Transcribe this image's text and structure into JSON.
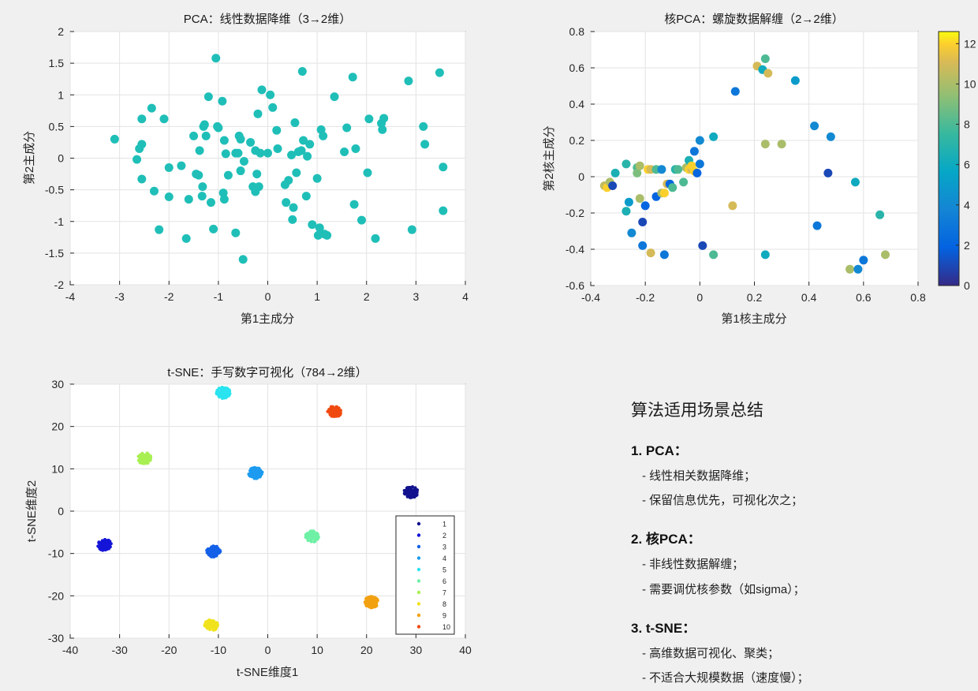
{
  "charts": [
    {
      "id": "pca",
      "title": "PCA：线性数据降维（3→2维）",
      "xlabel": "第1主成分",
      "ylabel": "第2主成分",
      "xticks": [
        "-4",
        "-3",
        "-2",
        "-1",
        "0",
        "1",
        "2",
        "3",
        "4"
      ],
      "yticks": [
        "-2",
        "-1.5",
        "-1",
        "-0.5",
        "0",
        "0.5",
        "1",
        "1.5",
        "2"
      ],
      "colors": {
        "point": "#1fbfb8"
      }
    },
    {
      "id": "kpca",
      "title": "核PCA：螺旋数据解缠（2→2维）",
      "xlabel": "第1核主成分",
      "ylabel": "第2核主成分",
      "xticks": [
        "-0.4",
        "-0.2",
        "0",
        "0.2",
        "0.4",
        "0.6",
        "0.8"
      ],
      "yticks": [
        "-0.6",
        "-0.4",
        "-0.2",
        "0",
        "0.2",
        "0.4",
        "0.6",
        "0.8"
      ],
      "colorbar_ticks": [
        "0",
        "2",
        "4",
        "6",
        "8",
        "10",
        "12"
      ]
    },
    {
      "id": "tsne",
      "title": "t-SNE：手写数字可视化（784→2维）",
      "xlabel": "t-SNE维度1",
      "ylabel": "t-SNE维度2",
      "xticks": [
        "-40",
        "-30",
        "-20",
        "-10",
        "0",
        "10",
        "20",
        "30",
        "40"
      ],
      "yticks": [
        "-30",
        "-20",
        "-10",
        "0",
        "10",
        "20",
        "30"
      ],
      "legend": [
        "1",
        "2",
        "3",
        "4",
        "5",
        "6",
        "7",
        "8",
        "9",
        "10"
      ]
    }
  ],
  "chart_data": [
    {
      "type": "scatter",
      "title": "PCA：线性数据降维（3→2维）",
      "xlabel": "第1主成分",
      "ylabel": "第2主成分",
      "xlim": [
        -4,
        4
      ],
      "ylim": [
        -2,
        2
      ],
      "grid": true,
      "color": "#1fbfb8",
      "points": [
        [
          -3.1,
          0.3
        ],
        [
          -2.65,
          -0.02
        ],
        [
          -2.6,
          0.15
        ],
        [
          -2.55,
          0.22
        ],
        [
          -2.55,
          0.62
        ],
        [
          -2.55,
          -0.33
        ],
        [
          -2.35,
          0.79
        ],
        [
          -2.3,
          -0.52
        ],
        [
          -2.2,
          -1.13
        ],
        [
          -2.1,
          0.62
        ],
        [
          -2.0,
          -0.15
        ],
        [
          -2.0,
          -0.61
        ],
        [
          -1.75,
          -0.12
        ],
        [
          -1.65,
          -1.27
        ],
        [
          -1.6,
          -0.65
        ],
        [
          -1.5,
          0.35
        ],
        [
          -1.45,
          -0.25
        ],
        [
          -1.4,
          -0.27
        ],
        [
          -1.38,
          0.12
        ],
        [
          -1.33,
          -0.6
        ],
        [
          -1.32,
          -0.45
        ],
        [
          -1.3,
          0.5
        ],
        [
          -1.28,
          0.53
        ],
        [
          -1.25,
          0.35
        ],
        [
          -1.2,
          0.97
        ],
        [
          -1.15,
          -0.7
        ],
        [
          -1.1,
          -1.12
        ],
        [
          -1.05,
          1.58
        ],
        [
          -1.02,
          0.5
        ],
        [
          -1.0,
          0.48
        ],
        [
          -0.92,
          0.9
        ],
        [
          -0.9,
          -0.55
        ],
        [
          -0.88,
          0.28
        ],
        [
          -0.88,
          -0.65
        ],
        [
          -0.85,
          0.07
        ],
        [
          -0.8,
          -0.27
        ],
        [
          -0.65,
          0.08
        ],
        [
          -0.65,
          -1.18
        ],
        [
          -0.6,
          0.08
        ],
        [
          -0.58,
          0.35
        ],
        [
          -0.55,
          -0.2
        ],
        [
          -0.55,
          0.3
        ],
        [
          -0.5,
          -1.6
        ],
        [
          -0.48,
          -0.05
        ],
        [
          -0.35,
          0.25
        ],
        [
          -0.3,
          -0.45
        ],
        [
          -0.25,
          -0.53
        ],
        [
          -0.25,
          0.12
        ],
        [
          -0.22,
          -0.25
        ],
        [
          -0.2,
          0.7
        ],
        [
          -0.18,
          -0.45
        ],
        [
          -0.15,
          0.08
        ],
        [
          -0.12,
          1.08
        ],
        [
          0.0,
          0.08
        ],
        [
          0.05,
          1.0
        ],
        [
          0.1,
          0.8
        ],
        [
          0.18,
          0.44
        ],
        [
          0.2,
          0.15
        ],
        [
          0.35,
          -0.42
        ],
        [
          0.37,
          -0.7
        ],
        [
          0.42,
          -0.35
        ],
        [
          0.48,
          0.05
        ],
        [
          0.5,
          -0.97
        ],
        [
          0.52,
          -0.78
        ],
        [
          0.55,
          0.56
        ],
        [
          0.58,
          -0.23
        ],
        [
          0.62,
          0.1
        ],
        [
          0.68,
          0.12
        ],
        [
          0.7,
          1.37
        ],
        [
          0.72,
          0.28
        ],
        [
          0.78,
          -0.6
        ],
        [
          0.8,
          0.03
        ],
        [
          0.85,
          0.22
        ],
        [
          0.9,
          -1.05
        ],
        [
          1.0,
          -0.32
        ],
        [
          1.02,
          -1.22
        ],
        [
          1.05,
          -1.1
        ],
        [
          1.08,
          0.45
        ],
        [
          1.12,
          0.35
        ],
        [
          1.15,
          -1.2
        ],
        [
          1.2,
          -1.22
        ],
        [
          1.35,
          0.97
        ],
        [
          1.55,
          0.1
        ],
        [
          1.6,
          0.48
        ],
        [
          1.72,
          1.28
        ],
        [
          1.75,
          -0.73
        ],
        [
          1.78,
          0.15
        ],
        [
          1.9,
          -0.98
        ],
        [
          2.02,
          -0.23
        ],
        [
          2.05,
          0.62
        ],
        [
          2.18,
          -1.27
        ],
        [
          2.3,
          0.55
        ],
        [
          2.32,
          0.45
        ],
        [
          2.35,
          0.63
        ],
        [
          2.85,
          1.22
        ],
        [
          2.92,
          -1.13
        ],
        [
          3.15,
          0.5
        ],
        [
          3.18,
          0.22
        ],
        [
          3.48,
          1.35
        ],
        [
          3.55,
          -0.14
        ],
        [
          3.55,
          -0.83
        ]
      ]
    },
    {
      "type": "scatter",
      "title": "核PCA：螺旋数据解缠（2→2维）",
      "xlabel": "第1核主成分",
      "ylabel": "第2核主成分",
      "xlim": [
        -0.4,
        0.8
      ],
      "ylim": [
        -0.6,
        0.8
      ],
      "grid": true,
      "colorbar": {
        "range": [
          0,
          12.6
        ],
        "colormap": "parula",
        "ticks": [
          0,
          2,
          4,
          6,
          8,
          10,
          12
        ]
      },
      "points": [
        [
          -0.35,
          -0.05,
          10.5
        ],
        [
          -0.34,
          -0.06,
          12
        ],
        [
          -0.33,
          -0.03,
          10
        ],
        [
          -0.32,
          -0.05,
          1
        ],
        [
          -0.31,
          0.02,
          6.5
        ],
        [
          -0.27,
          0.07,
          7
        ],
        [
          -0.27,
          -0.19,
          6.5
        ],
        [
          -0.26,
          -0.14,
          5
        ],
        [
          -0.25,
          -0.31,
          4
        ],
        [
          -0.23,
          0.05,
          8
        ],
        [
          -0.23,
          0.02,
          9
        ],
        [
          -0.22,
          0.06,
          10
        ],
        [
          -0.22,
          -0.12,
          10
        ],
        [
          -0.21,
          -0.25,
          1
        ],
        [
          -0.21,
          -0.38,
          3
        ],
        [
          -0.2,
          -0.16,
          2
        ],
        [
          -0.19,
          0.04,
          12
        ],
        [
          -0.18,
          0.04,
          11
        ],
        [
          -0.18,
          -0.42,
          11
        ],
        [
          -0.16,
          0.04,
          8
        ],
        [
          -0.14,
          0.04,
          4
        ],
        [
          -0.16,
          -0.11,
          2
        ],
        [
          -0.14,
          -0.09,
          10
        ],
        [
          -0.13,
          -0.09,
          12
        ],
        [
          -0.12,
          -0.04,
          11
        ],
        [
          -0.13,
          -0.43,
          3
        ],
        [
          -0.11,
          -0.04,
          2
        ],
        [
          -0.1,
          -0.06,
          8
        ],
        [
          -0.09,
          0.04,
          7
        ],
        [
          -0.08,
          0.04,
          8
        ],
        [
          -0.06,
          -0.03,
          8
        ],
        [
          -0.05,
          0.05,
          10
        ],
        [
          -0.04,
          0.04,
          12
        ],
        [
          -0.04,
          0.09,
          6.5
        ],
        [
          -0.03,
          0.04,
          11
        ],
        [
          -0.03,
          0.06,
          12
        ],
        [
          -0.02,
          0.03,
          12
        ],
        [
          -0.02,
          0.14,
          3
        ],
        [
          -0.01,
          0.02,
          2
        ],
        [
          0.0,
          0.07,
          3
        ],
        [
          0.0,
          0.2,
          4
        ],
        [
          0.01,
          -0.38,
          1
        ],
        [
          0.05,
          0.22,
          6
        ],
        [
          0.05,
          -0.43,
          8
        ],
        [
          0.12,
          -0.16,
          11
        ],
        [
          0.13,
          0.47,
          3
        ],
        [
          0.21,
          0.61,
          11
        ],
        [
          0.23,
          0.59,
          6
        ],
        [
          0.24,
          0.65,
          8
        ],
        [
          0.24,
          -0.43,
          6
        ],
        [
          0.24,
          0.18,
          10
        ],
        [
          0.25,
          0.57,
          11
        ],
        [
          0.3,
          0.18,
          10
        ],
        [
          0.35,
          0.53,
          5
        ],
        [
          0.42,
          0.28,
          4
        ],
        [
          0.43,
          -0.27,
          3
        ],
        [
          0.47,
          0.02,
          1
        ],
        [
          0.48,
          0.22,
          4
        ],
        [
          0.57,
          -0.03,
          6
        ],
        [
          0.55,
          -0.51,
          10
        ],
        [
          0.58,
          -0.51,
          4
        ],
        [
          0.6,
          -0.46,
          3
        ],
        [
          0.66,
          -0.21,
          7
        ],
        [
          0.68,
          -0.43,
          10
        ]
      ]
    },
    {
      "type": "scatter",
      "title": "t-SNE：手写数字可视化（784→2维）",
      "xlabel": "t-SNE维度1",
      "ylabel": "t-SNE维度2",
      "xlim": [
        -40,
        40
      ],
      "ylim": [
        -30,
        30
      ],
      "grid": true,
      "legend_position": "bottom-right",
      "series": [
        {
          "name": "1",
          "center": [
            29,
            4.5
          ],
          "color": "#12128f"
        },
        {
          "name": "2",
          "center": [
            -33,
            -8
          ],
          "color": "#1515d8"
        },
        {
          "name": "3",
          "center": [
            -11,
            -9.5
          ],
          "color": "#1460e8"
        },
        {
          "name": "4",
          "center": [
            -2.5,
            9
          ],
          "color": "#1c9bf0"
        },
        {
          "name": "5",
          "center": [
            -9,
            28
          ],
          "color": "#29e4f0"
        },
        {
          "name": "6",
          "center": [
            9,
            -6
          ],
          "color": "#6ef0a5"
        },
        {
          "name": "7",
          "center": [
            -25,
            12.5
          ],
          "color": "#a8ef52"
        },
        {
          "name": "8",
          "center": [
            -11.5,
            -27
          ],
          "color": "#f0e31e"
        },
        {
          "name": "9",
          "center": [
            21,
            -21.5
          ],
          "color": "#f2a111"
        },
        {
          "name": "10",
          "center": [
            13.5,
            23.5
          ],
          "color": "#f04a10"
        }
      ]
    }
  ],
  "summary": {
    "title": "算法适用场景总结",
    "sections": [
      {
        "heading": "1. PCA：",
        "items": [
          "- 线性相关数据降维；",
          "- 保留信息优先，可视化次之；"
        ]
      },
      {
        "heading": "2. 核PCA：",
        "items": [
          "- 非线性数据解缠；",
          "- 需要调优核参数（如sigma）；"
        ]
      },
      {
        "heading": "3. t-SNE：",
        "items": [
          "- 高维数据可视化、聚类；",
          "- 不适合大规模数据（速度慢）；"
        ]
      }
    ]
  }
}
